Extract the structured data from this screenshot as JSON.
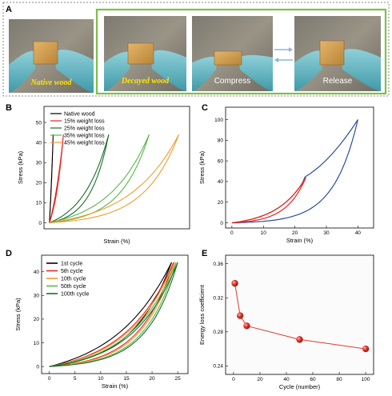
{
  "panel_a": {
    "label": "A",
    "photos": [
      {
        "caption": "Native wood",
        "style": "serif-yellow"
      },
      {
        "caption": "Decayed wood",
        "style": "serif-yellow"
      },
      {
        "caption": "Compress",
        "style": "sans-white"
      },
      {
        "caption": "Release",
        "style": "sans-white"
      }
    ],
    "frame_color": "#7bc043",
    "arrow_color": "#8db3d9"
  },
  "panel_labels": {
    "b": "B",
    "c": "C",
    "d": "D",
    "e": "E"
  },
  "chart_data": [
    {
      "panel": "B",
      "type": "line",
      "xlabel": "Strain (%)",
      "ylabel": "Stress (kPa)",
      "ylim": [
        -3,
        58
      ],
      "xlim": [
        -1,
        26
      ],
      "yticks": [
        0,
        10,
        20,
        30,
        40,
        50
      ],
      "xticks": [],
      "legend_position": "top-left",
      "series": [
        {
          "name": "Native wood",
          "color": "#000000",
          "xmax": 0.7,
          "ymax": 44,
          "curv": 0.5
        },
        {
          "name": "15% weight loss",
          "color": "#e8251d",
          "xmax": 2.6,
          "ymax": 44,
          "curv": 1.0
        },
        {
          "name": "25% weight loss",
          "color": "#1a6e2a",
          "xmax": 11,
          "ymax": 44,
          "curv": 2.2
        },
        {
          "name": "35% weight loss",
          "color": "#58b848",
          "xmax": 18.5,
          "ymax": 44,
          "curv": 2.4
        },
        {
          "name": "45% weight loss",
          "color": "#f39a2b",
          "xmax": 24,
          "ymax": 44,
          "curv": 2.6
        }
      ]
    },
    {
      "panel": "C",
      "type": "line",
      "xlabel": "Strain (%)",
      "ylabel": "Stress (kPa)",
      "xlim": [
        -2,
        45
      ],
      "ylim": [
        -5,
        112
      ],
      "xticks": [
        0,
        10,
        20,
        30,
        40
      ],
      "yticks": [
        0,
        20,
        40,
        60,
        80,
        100
      ],
      "series": [
        {
          "color": "#2e4d9e",
          "xmax": 40,
          "ymax": 100,
          "curv": 3.2,
          "knee_x": 23
        },
        {
          "color": "#e8251d",
          "xmax": 23.5,
          "ymax": 44,
          "curv": 2.6
        }
      ]
    },
    {
      "panel": "D",
      "type": "line",
      "xlabel": "Strain (%)",
      "ylabel": "Stress (kPa)",
      "xlim": [
        -1.5,
        27
      ],
      "ylim": [
        -3,
        47
      ],
      "xticks": [
        0,
        5,
        10,
        15,
        20,
        25
      ],
      "yticks": [
        0,
        10,
        20,
        30,
        40
      ],
      "legend_position": "top-left",
      "series": [
        {
          "name": "1st   cycle",
          "color": "#000000",
          "xmax": 23.8,
          "ymax": 44,
          "curv": 2.1
        },
        {
          "name": "5th   cycle",
          "color": "#e8251d",
          "xmax": 24.2,
          "ymax": 44,
          "curv": 2.5
        },
        {
          "name": "10th   cycle",
          "color": "#f39a2b",
          "xmax": 24.4,
          "ymax": 44,
          "curv": 2.6
        },
        {
          "name": "50th   cycle",
          "color": "#58b848",
          "xmax": 24.7,
          "ymax": 44,
          "curv": 2.8
        },
        {
          "name": "100th cycle",
          "color": "#1a6e2a",
          "xmax": 25.0,
          "ymax": 44,
          "curv": 2.9
        }
      ]
    },
    {
      "panel": "E",
      "type": "scatter",
      "xlabel": "Cycle (number)",
      "ylabel": "Energy loss coefficient",
      "xlim": [
        -6,
        106
      ],
      "ylim": [
        0.23,
        0.37
      ],
      "xticks": [
        0,
        20,
        40,
        60,
        80,
        100
      ],
      "yticks": [
        0.24,
        0.28,
        0.32,
        0.36
      ],
      "color": "#e03a2f",
      "x": [
        1,
        5,
        10,
        50,
        100
      ],
      "y": [
        0.337,
        0.299,
        0.287,
        0.271,
        0.26
      ]
    }
  ]
}
